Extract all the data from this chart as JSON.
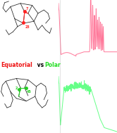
{
  "eq_color": "#ee1111",
  "polar_color": "#22dd22",
  "pink_color": "#ff7799",
  "green_color": "#66ff88",
  "bg_color": "#ffffff",
  "mol_color_top": "#ff2222",
  "mol_color_bot": "#22cc22",
  "label_fontsize": 5.5,
  "label_eq": "Equatorial",
  "label_vs": " vs ",
  "label_polar": "Polar",
  "figw": 1.66,
  "figh": 1.89
}
